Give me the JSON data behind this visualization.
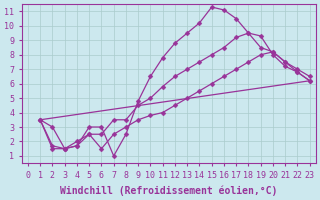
{
  "xlabel": "Windchill (Refroidissement éolien,°C)",
  "xlim": [
    -0.5,
    23.5
  ],
  "ylim": [
    0.5,
    11.5
  ],
  "xticks": [
    0,
    1,
    2,
    3,
    4,
    5,
    6,
    7,
    8,
    9,
    10,
    11,
    12,
    13,
    14,
    15,
    16,
    17,
    18,
    19,
    20,
    21,
    22,
    23
  ],
  "yticks": [
    1,
    2,
    3,
    4,
    5,
    6,
    7,
    8,
    9,
    10,
    11
  ],
  "line_color": "#993399",
  "bg_color": "#cce8ee",
  "grid_color": "#aacccc",
  "lines": [
    {
      "x": [
        1,
        2,
        3,
        4,
        5,
        6,
        7,
        8,
        9,
        10,
        11,
        12,
        13,
        14,
        15,
        16,
        17,
        18,
        19,
        20,
        21,
        22,
        23
      ],
      "y": [
        3.5,
        3.0,
        1.5,
        1.7,
        3.0,
        3.0,
        1.0,
        2.5,
        4.8,
        6.5,
        7.8,
        8.8,
        9.5,
        10.2,
        11.3,
        11.1,
        10.5,
        9.5,
        9.3,
        8.0,
        7.2,
        6.8,
        6.2
      ]
    },
    {
      "x": [
        1,
        2,
        3,
        4,
        5,
        6,
        7,
        8,
        9,
        10,
        11,
        12,
        13,
        14,
        15,
        16,
        17,
        18,
        19,
        20,
        21,
        22,
        23
      ],
      "y": [
        3.5,
        1.7,
        1.5,
        2.0,
        2.5,
        2.5,
        3.5,
        3.5,
        4.5,
        5.0,
        5.8,
        6.5,
        7.0,
        7.5,
        8.0,
        8.5,
        9.2,
        9.5,
        8.5,
        8.2,
        7.5,
        7.0,
        6.5
      ]
    },
    {
      "x": [
        1,
        2,
        3,
        4,
        5,
        6,
        7,
        8,
        9,
        10,
        11,
        12,
        13,
        14,
        15,
        16,
        17,
        18,
        19,
        20,
        21,
        22,
        23
      ],
      "y": [
        3.5,
        1.5,
        1.5,
        1.7,
        2.5,
        1.5,
        2.5,
        3.0,
        3.5,
        3.8,
        4.0,
        4.5,
        5.0,
        5.5,
        6.0,
        6.5,
        7.0,
        7.5,
        8.0,
        8.2,
        7.5,
        6.8,
        6.2
      ]
    },
    {
      "x": [
        1,
        23
      ],
      "y": [
        3.5,
        6.2
      ]
    }
  ],
  "marker": "D",
  "marker_size": 2.5,
  "line_width": 0.9,
  "font_family": "monospace",
  "xlabel_fontsize": 7,
  "tick_fontsize": 6
}
